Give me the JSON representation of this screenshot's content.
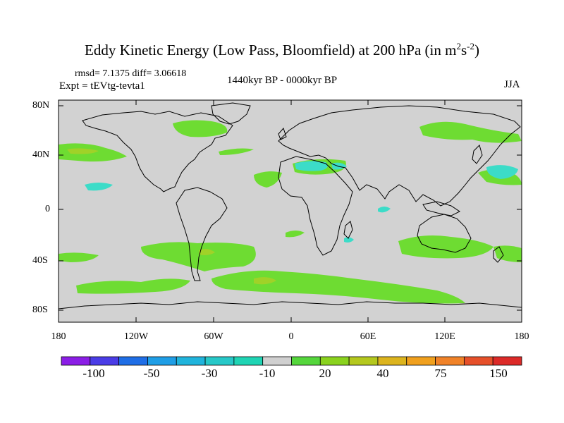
{
  "title": {
    "main": "Eddy Kinetic Energy (Low Pass, Bloomfield) at 200 hPa (in m",
    "sup1": "2",
    "mid": "s",
    "sup2": "-2",
    "end": ")"
  },
  "stats": "rmsd= 7.1375  diff= 3.06618",
  "experiment": "Expt = tEVtg-tevta1",
  "period": "1440kyr BP - 0000kyr BP",
  "season": "JJA",
  "lat_labels": [
    "80N",
    "40N",
    "0",
    "40S",
    "80S"
  ],
  "lon_labels": [
    "180",
    "120W",
    "60W",
    "0",
    "60E",
    "120E",
    "180"
  ],
  "colorbar": {
    "labels": [
      "-100",
      "-50",
      "-30",
      "-10",
      "20",
      "40",
      "75",
      "150"
    ],
    "colors": [
      "#8b1ee6",
      "#4a3ce6",
      "#1f6ee6",
      "#1f9ee6",
      "#20b4dc",
      "#27c8c8",
      "#1fd4b4",
      "#d0d0d0",
      "#55d63c",
      "#8ad21e",
      "#b4c81e",
      "#dcb41e",
      "#f0a01e",
      "#f08228",
      "#e6502a",
      "#dc2a28"
    ]
  },
  "colors": {
    "land_background": "#d2d2d2",
    "positive_light": "#6edc32",
    "positive_mid": "#a0d228",
    "negative_light": "#3cdcc8"
  }
}
